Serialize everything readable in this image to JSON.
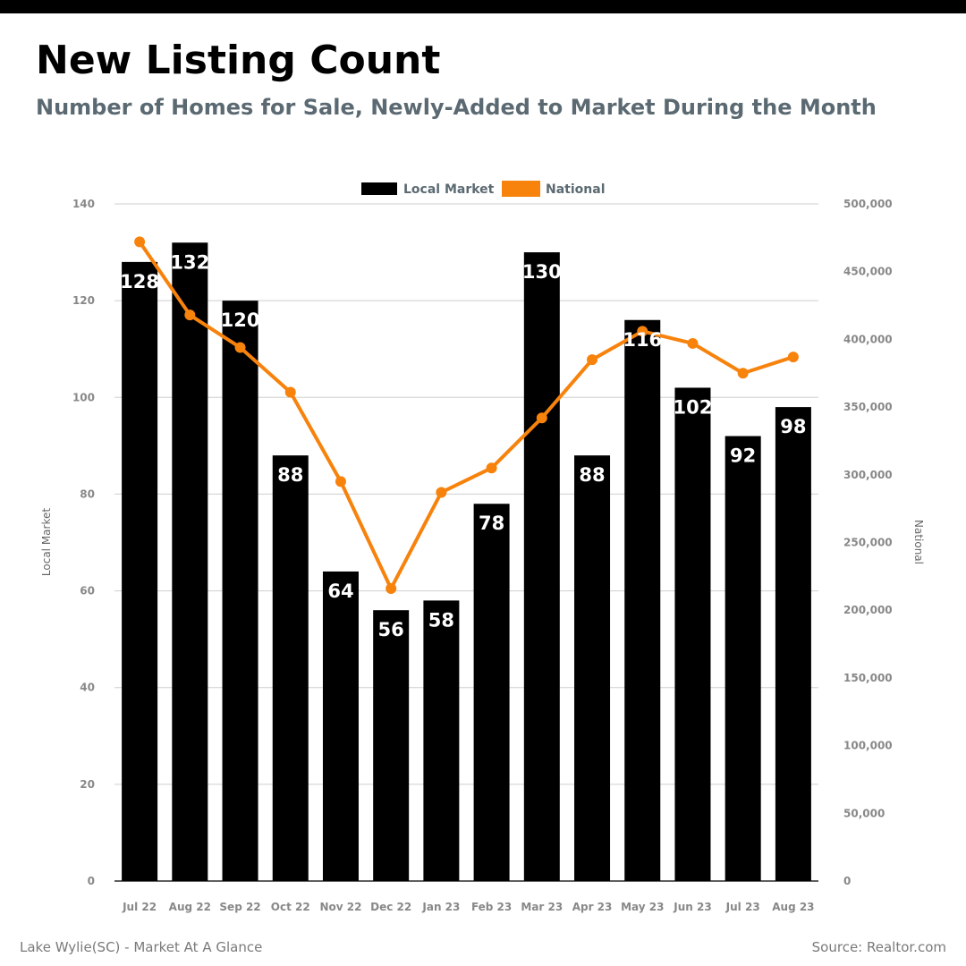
{
  "header": {
    "title": "New Listing Count",
    "subtitle": "Number of Homes for Sale, Newly-Added to Market During the Month"
  },
  "footer": {
    "left": "Lake Wylie(SC) - Market At A Glance",
    "right": "Source: Realtor.com"
  },
  "chart_data": {
    "type": "bar",
    "title": "New Listing Count",
    "subtitle": "Number of Homes for Sale, Newly-Added to Market During the Month",
    "categories": [
      "Jul 22",
      "Aug 22",
      "Sep 22",
      "Oct 22",
      "Nov 22",
      "Dec 22",
      "Jan 23",
      "Feb 23",
      "Mar 23",
      "Apr 23",
      "May 23",
      "Jun 23",
      "Jul 23",
      "Aug 23"
    ],
    "series": [
      {
        "name": "Local Market",
        "type": "bar",
        "axis": "left",
        "color": "#000000",
        "values": [
          128,
          132,
          120,
          88,
          64,
          56,
          58,
          78,
          130,
          88,
          116,
          102,
          92,
          98
        ]
      },
      {
        "name": "National",
        "type": "line",
        "axis": "right",
        "color": "#f7820c",
        "values": [
          472000,
          418000,
          394000,
          361000,
          295000,
          216000,
          287000,
          305000,
          342000,
          385000,
          406000,
          397000,
          375000,
          387000
        ]
      }
    ],
    "ylabel": "Local Market",
    "y2label": "National",
    "ylim": [
      0,
      140
    ],
    "yticks": [
      0,
      20,
      40,
      60,
      80,
      100,
      120,
      140
    ],
    "y2lim": [
      0,
      500000
    ],
    "y2ticks": [
      "0",
      "50,000",
      "100,000",
      "150,000",
      "200,000",
      "250,000",
      "300,000",
      "350,000",
      "400,000",
      "450,000",
      "500,000"
    ],
    "y2tick_values": [
      0,
      50000,
      100000,
      150000,
      200000,
      250000,
      300000,
      350000,
      400000,
      450000,
      500000
    ],
    "grid": true,
    "legend": "top-center"
  }
}
